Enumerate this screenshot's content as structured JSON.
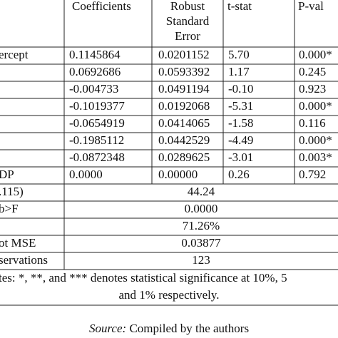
{
  "table": {
    "header": [
      "Coefficients",
      [
        "Robust",
        "Standard",
        "Error"
      ],
      "t-stat",
      "P-val"
    ],
    "rows": [
      [
        "ercept",
        "0.1145864",
        "0.0201152",
        "5.70",
        "0.000*"
      ],
      [
        null,
        "0.0692686",
        "0.0593392",
        "1.17",
        "0.245"
      ],
      [
        null,
        "-0.004733",
        "0.0491194",
        "-0.10",
        "0.923"
      ],
      [
        null,
        "-0.1019377",
        "0.0192068",
        "-5.31",
        "0.000*"
      ],
      [
        null,
        "-0.0654919",
        "0.0414065",
        "-1.58",
        "0.116"
      ],
      [
        null,
        "-0.1985112",
        "0.0442529",
        "-4.49",
        "0.000*"
      ],
      [
        null,
        "-0.0872348",
        "0.0289625",
        "-3.01",
        "0.003*"
      ],
      [
        "DP",
        "0.0000",
        "0.00000",
        "0.26",
        "0.792"
      ]
    ],
    "stats": [
      [
        ".115)",
        "44.24"
      ],
      [
        "b>F",
        "0.0000"
      ],
      [
        null,
        "71.26%"
      ],
      [
        "ot MSE",
        "0.03877"
      ],
      [
        "servations",
        "123"
      ]
    ],
    "notes": [
      "tes: *, **, and *** denotes statistical significance at 10%, 5",
      "and 1% respectively."
    ]
  },
  "source": {
    "label": "Source:",
    "text": " Compiled by the authors"
  }
}
